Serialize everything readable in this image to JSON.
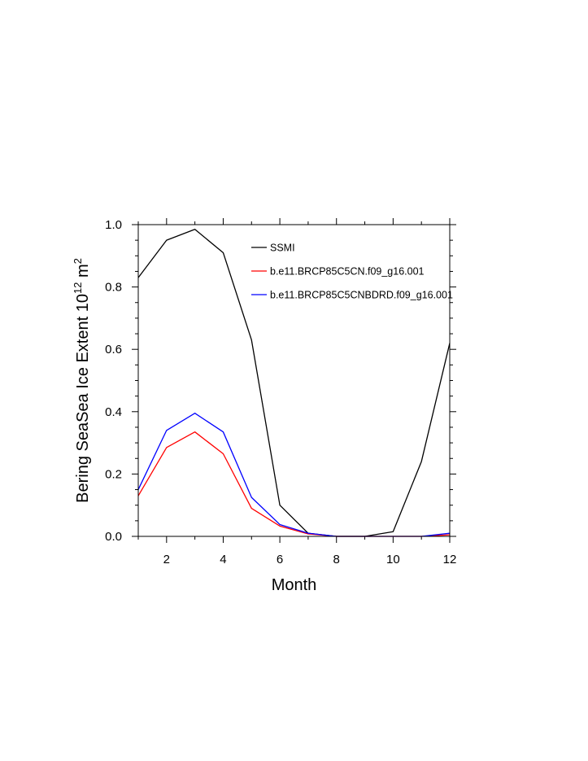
{
  "chart_data": {
    "type": "line",
    "title": "",
    "xlabel": "Month",
    "ylabel": {
      "main": "Bering SeaSea Ice Extent 10",
      "sup1": "12",
      "unit": " m",
      "sup2": "2"
    },
    "xlim": [
      1,
      12
    ],
    "ylim": [
      0.0,
      1.0
    ],
    "xticks": [
      2,
      4,
      6,
      8,
      10,
      12
    ],
    "xtick_labels": [
      "2",
      "4",
      "6",
      "8",
      "10",
      "12"
    ],
    "yticks": [
      0.0,
      0.2,
      0.4,
      0.6,
      0.8,
      1.0
    ],
    "ytick_labels": [
      "0.0",
      "0.2",
      "0.4",
      "0.6",
      "0.8",
      "1.0"
    ],
    "grid": false,
    "legend_position": "top-right",
    "x": [
      1,
      2,
      3,
      4,
      5,
      6,
      7,
      8,
      9,
      10,
      11,
      12
    ],
    "series": [
      {
        "name": "SSMI",
        "color": "#000000",
        "values": [
          0.83,
          0.95,
          0.985,
          0.91,
          0.63,
          0.1,
          0.01,
          0.0,
          0.0,
          0.015,
          0.24,
          0.62
        ]
      },
      {
        "name": "b.e11.BRCP85C5CN.f09_g16.001",
        "color": "#ff0000",
        "values": [
          0.13,
          0.285,
          0.335,
          0.265,
          0.09,
          0.033,
          0.008,
          0.0,
          0.0,
          0.0,
          0.0,
          0.005
        ]
      },
      {
        "name": "b.e11.BRCP85C5CNBDRD.f09_g16.001",
        "color": "#0000ff",
        "values": [
          0.15,
          0.34,
          0.395,
          0.335,
          0.125,
          0.038,
          0.01,
          0.0,
          0.0,
          0.0,
          0.0,
          0.01
        ]
      }
    ]
  }
}
